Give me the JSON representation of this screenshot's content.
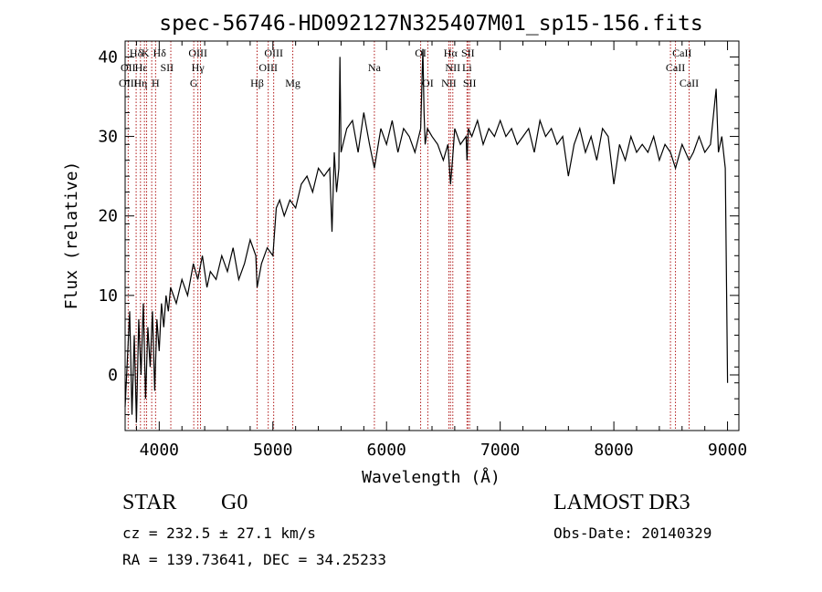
{
  "chart_data": {
    "type": "line",
    "title": "spec-56746-HD092127N325407M01_sp15-156.fits",
    "xlabel": "Wavelength (Å)",
    "ylabel": "Flux (relative)",
    "xlim": [
      3700,
      9100
    ],
    "ylim": [
      -7,
      42
    ],
    "x_ticks": [
      4000,
      5000,
      6000,
      7000,
      8000,
      9000
    ],
    "y_ticks": [
      0,
      10,
      20,
      30,
      40
    ],
    "grid": false,
    "series": [
      {
        "x": [
          3700,
          3720,
          3740,
          3760,
          3780,
          3800,
          3820,
          3840,
          3860,
          3880,
          3900,
          3920,
          3940,
          3960,
          3980,
          4000,
          4020,
          4040,
          4060,
          4080,
          4100,
          4150,
          4200,
          4250,
          4300,
          4340,
          4380,
          4420,
          4450,
          4500,
          4550,
          4600,
          4650,
          4700,
          4750,
          4800,
          4850,
          4861,
          4900,
          4950,
          5000,
          5030,
          5060,
          5100,
          5150,
          5200,
          5250,
          5300,
          5350,
          5400,
          5450,
          5500,
          5520,
          5540,
          5560,
          5580,
          5590,
          5600,
          5650,
          5700,
          5750,
          5800,
          5850,
          5893,
          5950,
          6000,
          6050,
          6100,
          6150,
          6200,
          6250,
          6300,
          6310,
          6320,
          6330,
          6340,
          6360,
          6400,
          6450,
          6500,
          6540,
          6563,
          6580,
          6600,
          6650,
          6700,
          6708,
          6720,
          6750,
          6800,
          6850,
          6900,
          6950,
          7000,
          7050,
          7100,
          7150,
          7200,
          7250,
          7300,
          7350,
          7400,
          7450,
          7500,
          7550,
          7600,
          7650,
          7700,
          7750,
          7800,
          7850,
          7900,
          7950,
          8000,
          8050,
          8100,
          8150,
          8200,
          8250,
          8300,
          8350,
          8400,
          8450,
          8498,
          8542,
          8600,
          8662,
          8700,
          8750,
          8800,
          8850,
          8900,
          8920,
          8950,
          8980,
          9000
        ],
        "y": [
          -4,
          2,
          8,
          -5,
          5,
          -6,
          7,
          0,
          9,
          -3,
          6,
          1,
          8,
          -2,
          7,
          3,
          9,
          6,
          10,
          8,
          11,
          9,
          12,
          10,
          14,
          12,
          15,
          11,
          13,
          12,
          15,
          13,
          16,
          12,
          14,
          17,
          15,
          11,
          14,
          16,
          15,
          21,
          22,
          20,
          22,
          21,
          24,
          25,
          23,
          26,
          25,
          26,
          18,
          28,
          23,
          26,
          40,
          28,
          31,
          32,
          28,
          33,
          29,
          26,
          31,
          29,
          32,
          28,
          31,
          30,
          28,
          31,
          36,
          41,
          33,
          29,
          31,
          30,
          29,
          27,
          29,
          24,
          27,
          31,
          29,
          30,
          27,
          31,
          30,
          32,
          29,
          31,
          30,
          32,
          30,
          31,
          29,
          30,
          31,
          28,
          32,
          30,
          31,
          29,
          30,
          25,
          29,
          31,
          28,
          30,
          27,
          31,
          30,
          24,
          29,
          27,
          30,
          28,
          29,
          28,
          30,
          27,
          29,
          28,
          26,
          29,
          27,
          28,
          30,
          28,
          29,
          36,
          28,
          30,
          26,
          -1
        ]
      }
    ],
    "line_labels": [
      {
        "text": "Hδ",
        "x": 3797,
        "row": 1
      },
      {
        "text": "K",
        "x": 3878,
        "row": 1
      },
      {
        "text": "Hδ",
        "x": 4003,
        "row": 1
      },
      {
        "text": "OIII",
        "x": 4340,
        "row": 1
      },
      {
        "text": "OIII",
        "x": 5007,
        "row": 1
      },
      {
        "text": "OI",
        "x": 6300,
        "row": 1
      },
      {
        "text": "Hα",
        "x": 6563,
        "row": 1
      },
      {
        "text": "SII",
        "x": 6716,
        "row": 1
      },
      {
        "text": "CaII",
        "x": 8600,
        "row": 1
      },
      {
        "text": "OII",
        "x": 3727,
        "row": 2
      },
      {
        "text": "Hε",
        "x": 3840,
        "row": 2
      },
      {
        "text": "SII",
        "x": 4068,
        "row": 2
      },
      {
        "text": "Hγ",
        "x": 4340,
        "row": 2
      },
      {
        "text": "OIII",
        "x": 4959,
        "row": 2
      },
      {
        "text": "Na",
        "x": 5893,
        "row": 2
      },
      {
        "text": "NII",
        "x": 6583,
        "row": 2
      },
      {
        "text": "Li",
        "x": 6708,
        "row": 2
      },
      {
        "text": "CaII",
        "x": 8542,
        "row": 2
      },
      {
        "text": "OIII",
        "x": 3727,
        "row": 3
      },
      {
        "text": "Hη",
        "x": 3835,
        "row": 3
      },
      {
        "text": "H",
        "x": 3968,
        "row": 3
      },
      {
        "text": "G",
        "x": 4304,
        "row": 3
      },
      {
        "text": "Hβ",
        "x": 4861,
        "row": 3
      },
      {
        "text": "Mg",
        "x": 5175,
        "row": 3
      },
      {
        "text": "OI",
        "x": 6363,
        "row": 3
      },
      {
        "text": "NII",
        "x": 6548,
        "row": 3
      },
      {
        "text": "SII",
        "x": 6731,
        "row": 3
      },
      {
        "text": "CaII",
        "x": 8662,
        "row": 3
      }
    ],
    "line_markers": [
      3727,
      3797,
      3835,
      3870,
      3889,
      3934,
      3968,
      4102,
      4304,
      4340,
      4363,
      4861,
      4959,
      5007,
      5175,
      5893,
      6300,
      6363,
      6548,
      6563,
      6583,
      6708,
      6716,
      6731,
      8498,
      8542,
      8662
    ]
  },
  "info": {
    "class_label": "STAR",
    "subclass_label": "G0",
    "survey": "LAMOST DR3",
    "cz": "cz = 232.5 ± 27.1 km/s",
    "obs_date": "Obs-Date: 20140329",
    "coords": "RA = 139.73641, DEC =  34.25233"
  }
}
